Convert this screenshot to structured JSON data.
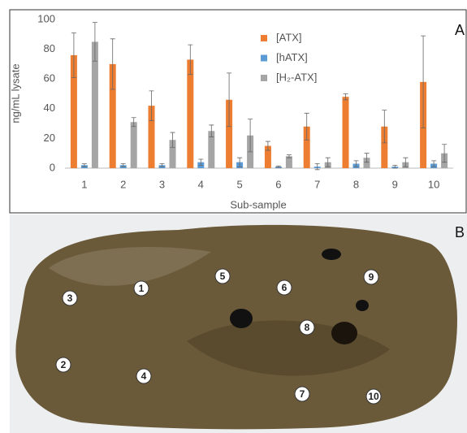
{
  "chart_data": {
    "type": "bar",
    "panel_label": "A",
    "ylabel": "ng/mL lysate",
    "xlabel": "Sub-sample",
    "categories": [
      "1",
      "2",
      "3",
      "4",
      "5",
      "6",
      "7",
      "8",
      "9",
      "10"
    ],
    "series": [
      {
        "name": "[ATX]",
        "color": "#ed7d31",
        "values": [
          76,
          70,
          42,
          73,
          46,
          15,
          28,
          48,
          28,
          58
        ],
        "errors": [
          15,
          17,
          10,
          10,
          18,
          3,
          9,
          2,
          11,
          31
        ]
      },
      {
        "name": "[hATX]",
        "color": "#5b9bd5",
        "values": [
          2,
          2,
          2,
          4,
          4,
          1,
          1,
          3,
          1,
          3
        ],
        "errors": [
          1,
          1,
          1,
          2,
          3,
          0.5,
          2,
          2,
          1,
          2
        ]
      },
      {
        "name": "[H₂-ATX]",
        "color": "#a5a5a5",
        "values": [
          85,
          31,
          19,
          25,
          22,
          8,
          4,
          7,
          4,
          10
        ],
        "errors": [
          13,
          3,
          5,
          4,
          11,
          1,
          3,
          3,
          3,
          6
        ]
      }
    ],
    "ylim": [
      0,
      100
    ],
    "yticks": [
      0,
      20,
      40,
      60,
      80,
      100
    ],
    "grid": false,
    "legend": "top"
  },
  "photo": {
    "panel_label": "B",
    "markers": [
      "1",
      "2",
      "3",
      "4",
      "5",
      "6",
      "7",
      "8",
      "9",
      "10"
    ]
  }
}
